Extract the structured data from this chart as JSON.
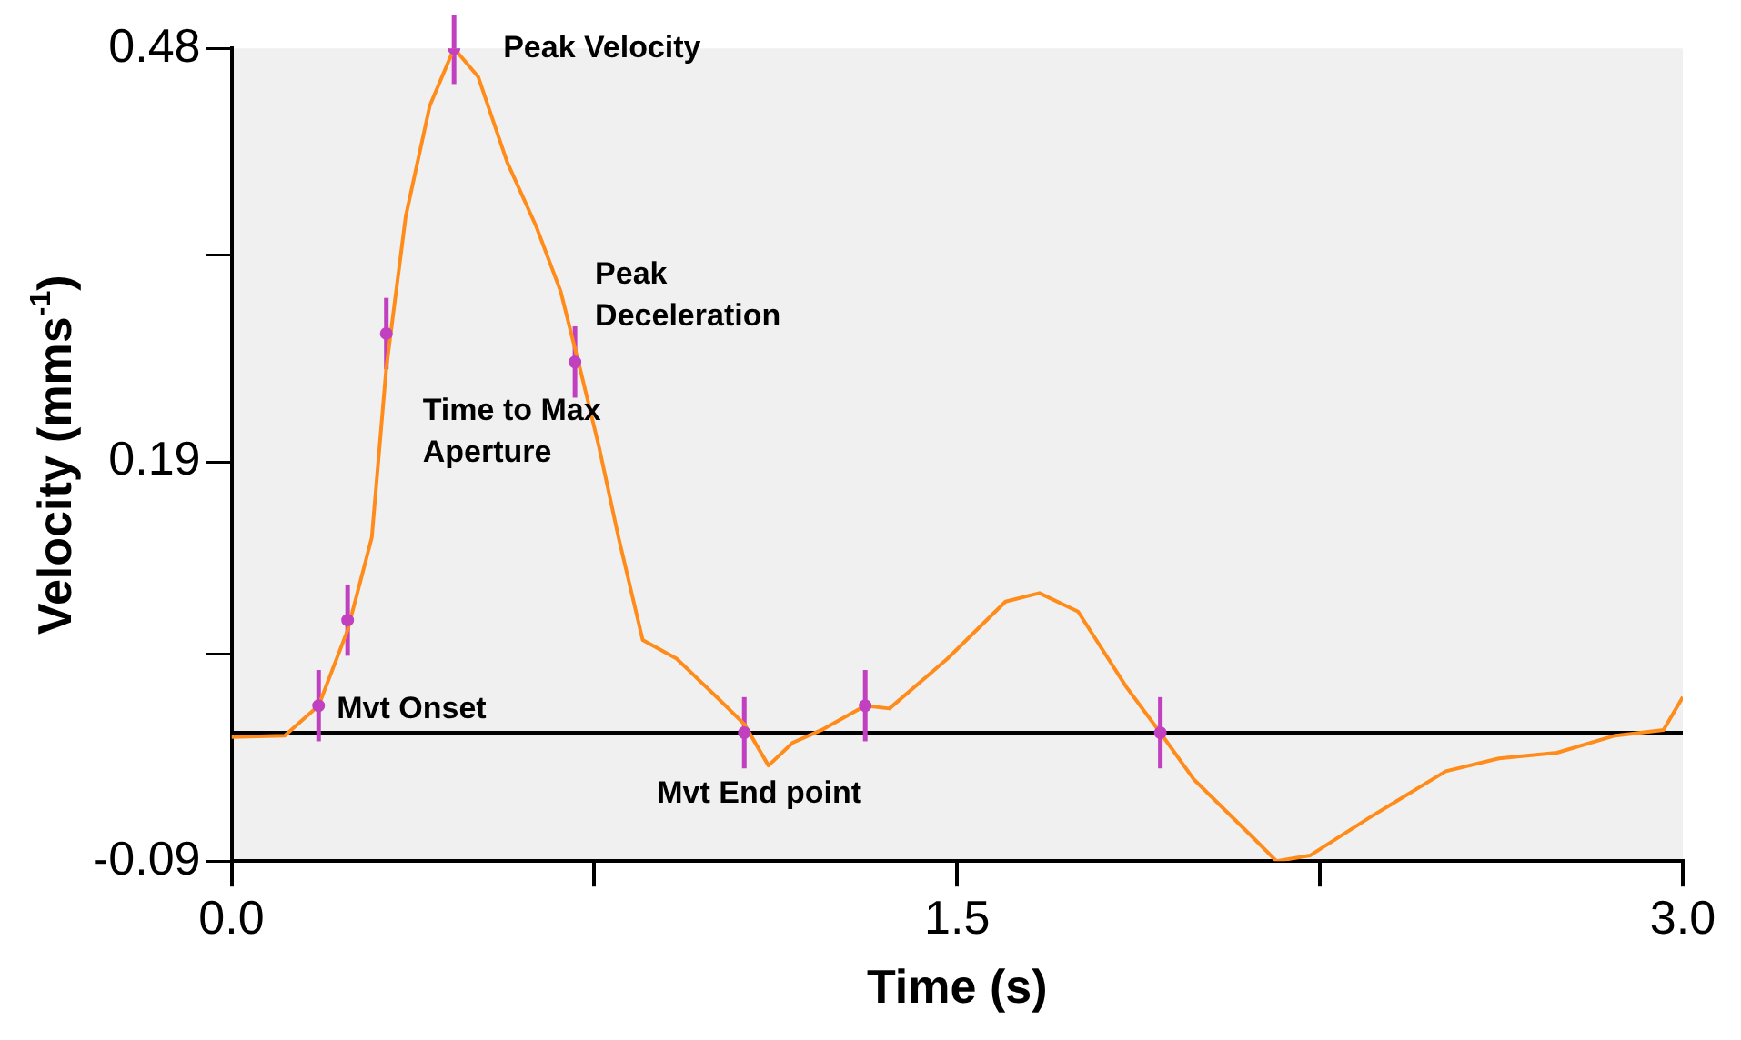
{
  "chart_data": {
    "type": "line",
    "xlabel": "Time (s)",
    "ylabel": "Velocity (mms$^{-1}$)",
    "xlim": [
      0,
      3
    ],
    "xticks": [
      {
        "value": 0,
        "label": "0.0"
      },
      {
        "value": 0.75,
        "label": null
      },
      1.5,
      {
        "value": 2.25,
        "label": null
      },
      {
        "value": 3,
        "label": "3.0"
      }
    ],
    "ylim": [
      -0.09,
      0.48
    ],
    "yticks": [
      -0.09,
      {
        "value": 0.055,
        "label": null
      },
      0.19,
      {
        "value": 0.335,
        "label": null
      },
      0.48
    ],
    "grid": false,
    "legend": false,
    "series": [
      {
        "color": "#ff8c1a",
        "marker": "none",
        "x": [
          0,
          0.11,
          0.18,
          0.24,
          0.29,
          0.32,
          0.36,
          0.41,
          0.46,
          0.51,
          0.57,
          0.63,
          0.68,
          0.72,
          0.76,
          0.8,
          0.85,
          0.92,
          1.0,
          1.06,
          1.11,
          1.16,
          1.22,
          1.31,
          1.36,
          1.48,
          1.6,
          1.67,
          1.75,
          1.85,
          1.92,
          1.99,
          2.11,
          2.16,
          2.23,
          2.35,
          2.51,
          2.62,
          2.74,
          2.86,
          2.96,
          3.0
        ],
        "values": [
          -0.003,
          -0.002,
          0.019,
          0.072,
          0.137,
          0.256,
          0.362,
          0.44,
          0.48,
          0.46,
          0.4,
          0.355,
          0.31,
          0.256,
          0.2,
          0.137,
          0.065,
          0.052,
          0.026,
          0.006,
          -0.023,
          -0.007,
          0.002,
          0.019,
          0.017,
          0.052,
          0.092,
          0.098,
          0.085,
          0.032,
          0.0,
          -0.033,
          -0.073,
          -0.09,
          -0.086,
          -0.06,
          -0.027,
          -0.018,
          -0.014,
          -0.002,
          0.002,
          0.025
        ]
      },
      {
        "type": "scatter",
        "color": "#c040c0",
        "marker": "circle",
        "x": [
          0.18,
          0.24,
          0.32,
          0.46,
          0.71,
          1.06,
          1.31,
          1.92
        ],
        "values": [
          0.019,
          0.079,
          0.28,
          0.48,
          0.26,
          0.0,
          0.019,
          0.0
        ],
        "errors": [
          0.025,
          0.025,
          0.025,
          0.025,
          0.025,
          0.025,
          0.025,
          0.025
        ]
      }
    ],
    "ref_lines": [
      {
        "axis": "y",
        "value": 0,
        "color": "#000000"
      }
    ],
    "annotations": [
      {
        "text": "Peak Velocity",
        "x": 0.46,
        "y": 0.48
      },
      {
        "text": "Peak Deceleration",
        "x": 0.71,
        "y": 0.26
      },
      {
        "text": "Time to Max Aperture",
        "x": 0.32,
        "y": 0.28
      },
      {
        "text": "Mvt Onset",
        "x": 0.18,
        "y": 0.019
      },
      {
        "text": "Mvt End point",
        "x": 1.06,
        "y": 0.0
      }
    ]
  }
}
